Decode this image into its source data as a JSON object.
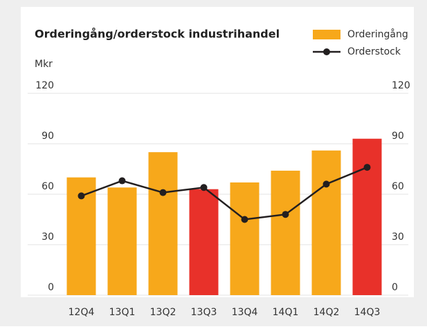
{
  "chart_data": {
    "type": "bar",
    "title": "Orderingång/orderstock industrihandel",
    "y_label": "Mkr",
    "categories": [
      "12Q4",
      "13Q1",
      "13Q2",
      "13Q3",
      "13Q4",
      "14Q1",
      "14Q2",
      "14Q3"
    ],
    "series": [
      {
        "name": "Orderingång",
        "type": "bar",
        "color": "#f7a81b",
        "colors": [
          "#f7a81b",
          "#f7a81b",
          "#f7a81b",
          "#e8312a",
          "#f7a81b",
          "#f7a81b",
          "#f7a81b",
          "#e8312a"
        ],
        "values": [
          70,
          64,
          85,
          63,
          67,
          74,
          86,
          93
        ]
      },
      {
        "name": "Orderstock",
        "type": "line",
        "color": "#231f20",
        "axis": "y2",
        "values": [
          59,
          68,
          61,
          64,
          45,
          48,
          66,
          76
        ]
      }
    ],
    "ylim": [
      0,
      120
    ],
    "yticks": [
      0,
      30,
      60,
      90,
      120
    ],
    "y2lim": [
      0,
      120
    ],
    "y2ticks": [
      0,
      30,
      60,
      90,
      120
    ],
    "grid": true
  }
}
